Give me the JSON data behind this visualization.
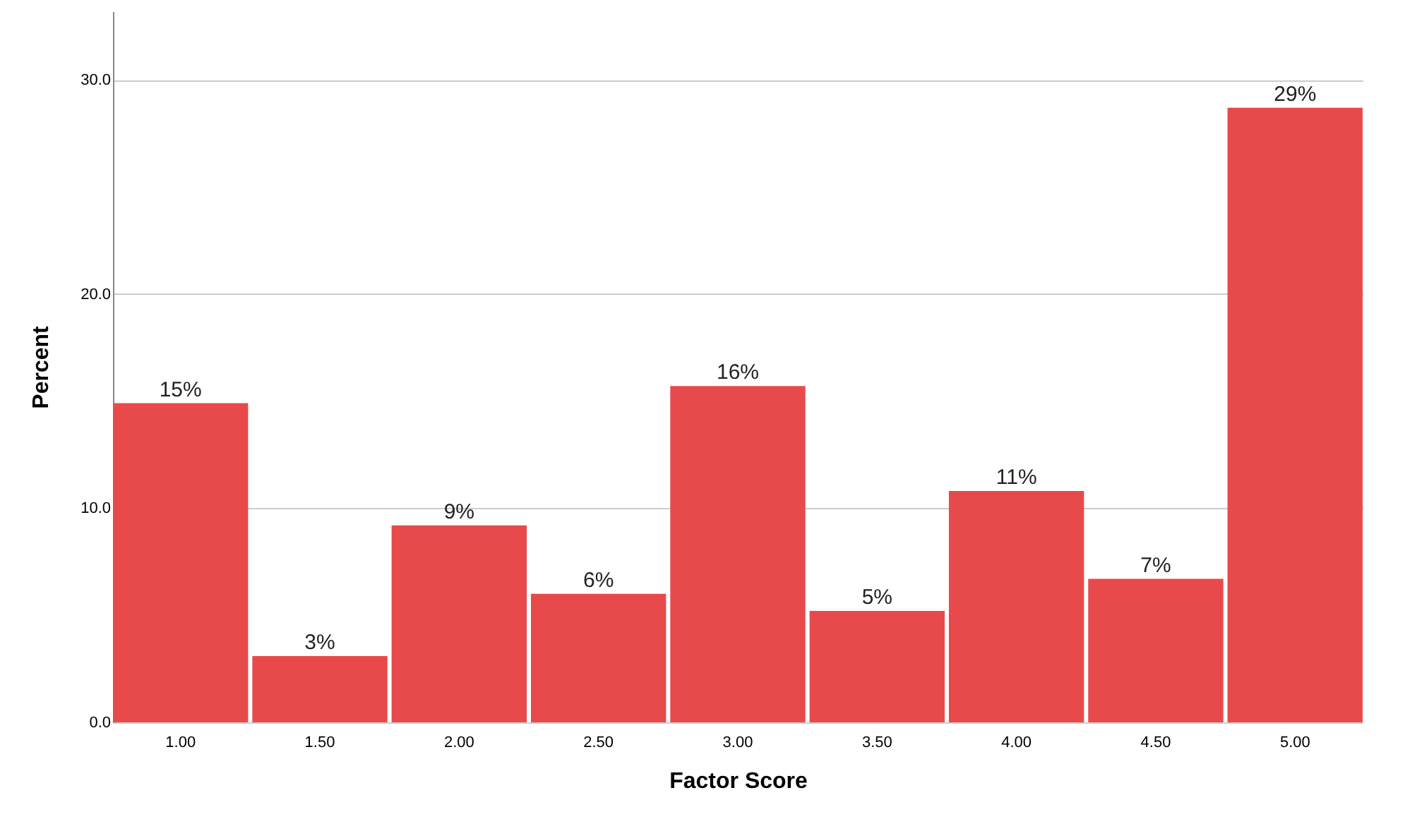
{
  "chart_data": {
    "type": "bar",
    "xlabel": "Factor Score",
    "ylabel": "Percent",
    "categories": [
      "1.00",
      "1.50",
      "2.00",
      "2.50",
      "3.00",
      "3.50",
      "4.00",
      "4.50",
      "5.00"
    ],
    "values": [
      14.9,
      3.1,
      9.2,
      6.0,
      15.7,
      5.2,
      10.8,
      6.7,
      28.7
    ],
    "value_labels": [
      "15%",
      "3%",
      "9%",
      "6%",
      "16%",
      "5%",
      "11%",
      "7%",
      "29%"
    ],
    "color": "#e84a4c",
    "ylim": [
      0,
      33.2
    ],
    "yticks": [
      {
        "value": 0,
        "label": "0.0"
      },
      {
        "value": 10,
        "label": "10.0"
      },
      {
        "value": 20,
        "label": "20.0"
      },
      {
        "value": 30,
        "label": "30.0"
      }
    ],
    "grid": "y"
  }
}
